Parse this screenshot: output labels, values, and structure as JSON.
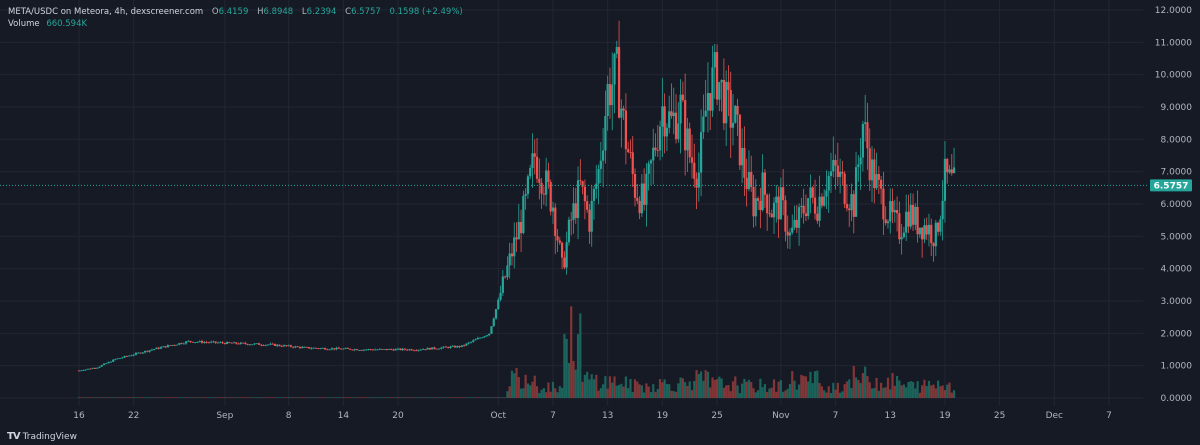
{
  "legend": {
    "symbol": "META/USDC on Meteora, 4h, dexscreener.com",
    "open_label": "O",
    "open": "6.4159",
    "high_label": "H",
    "high": "6.8948",
    "low_label": "L",
    "low": "6.2394",
    "close_label": "C",
    "close": "6.5757",
    "change": "0.1598 (+2.49%)",
    "volume_label": "Volume",
    "volume": "660.594K"
  },
  "branding": {
    "logo": "TV",
    "name": "TradingView"
  },
  "colors": {
    "up": "#26a69a",
    "down": "#ef5350",
    "background": "#161a25",
    "grid": "#232632",
    "text": "#b2b5be"
  },
  "chart_data": {
    "type": "candlestick",
    "symbol": "META/USDC",
    "interval": "4h",
    "y_ticks": [
      "0.0000",
      "1.0000",
      "2.0000",
      "3.0000",
      "4.0000",
      "5.0000",
      "6.0000",
      "7.0000",
      "8.0000",
      "9.0000",
      "10.0000",
      "11.0000",
      "12.0000"
    ],
    "ylim": [
      0,
      12
    ],
    "x_ticks": [
      "16",
      "22",
      "Sep",
      "8",
      "14",
      "20",
      "Oct",
      "7",
      "13",
      "19",
      "25",
      "Nov",
      "7",
      "13",
      "19",
      "25",
      "Dec",
      "7"
    ],
    "last_price": "6.5757",
    "price_series": {
      "dates": [
        "Aug 16",
        "Aug 18",
        "Aug 20",
        "Aug 24",
        "Aug 28",
        "Sep 1",
        "Sep 6",
        "Sep 10",
        "Sep 16",
        "Sep 22",
        "Sep 27",
        "Sep 30",
        "Oct 2",
        "Oct 4",
        "Oct 5",
        "Oct 7",
        "Oct 8",
        "Oct 9",
        "Oct 10",
        "Oct 11",
        "Oct 12",
        "Oct 13",
        "Oct 14",
        "Oct 15",
        "Oct 16",
        "Oct 17",
        "Oct 18",
        "Oct 19",
        "Oct 20",
        "Oct 21",
        "Oct 22",
        "Oct 23",
        "Oct 24",
        "Oct 25",
        "Oct 26",
        "Oct 27",
        "Oct 28",
        "Oct 29",
        "Oct 30",
        "Oct 31",
        "Nov 1",
        "Nov 2",
        "Nov 3",
        "Nov 4",
        "Nov 5",
        "Nov 6",
        "Nov 7",
        "Nov 8",
        "Nov 9",
        "Nov 10",
        "Nov 11",
        "Nov 12",
        "Nov 13",
        "Nov 14",
        "Nov 15",
        "Nov 16",
        "Nov 17",
        "Nov 18",
        "Nov 19",
        "Nov 20"
      ],
      "close": [
        0.85,
        0.95,
        1.2,
        1.5,
        1.75,
        1.7,
        1.65,
        1.55,
        1.5,
        1.5,
        1.6,
        2.0,
        4.0,
        6.0,
        7.5,
        6.0,
        4.0,
        5.5,
        6.5,
        5.5,
        7.0,
        9.5,
        10.0,
        8.0,
        6.5,
        6.0,
        7.5,
        9.0,
        8.5,
        9.0,
        7.5,
        7.0,
        9.5,
        10.0,
        9.0,
        8.5,
        7.0,
        6.0,
        6.5,
        5.8,
        6.0,
        5.0,
        5.5,
        6.2,
        6.0,
        6.8,
        7.0,
        6.5,
        6.0,
        8.5,
        7.0,
        6.2,
        5.6,
        5.2,
        5.8,
        5.4,
        5.3,
        5.0,
        6.8,
        6.5757
      ]
    },
    "volume_series": {
      "dates": [
        "Oct 2",
        "Oct 5",
        "Oct 8",
        "Oct 10",
        "Oct 12",
        "Oct 15",
        "Oct 18",
        "Oct 21",
        "Oct 24",
        "Oct 27",
        "Oct 30",
        "Nov 2",
        "Nov 5",
        "Nov 8",
        "Nov 11",
        "Nov 14",
        "Nov 17",
        "Nov 20"
      ],
      "values": [
        0.3,
        1.1,
        0.6,
        2.9,
        0.9,
        0.8,
        0.6,
        0.7,
        0.9,
        0.7,
        0.6,
        0.6,
        0.9,
        0.6,
        1.0,
        0.8,
        0.6,
        0.66
      ]
    }
  }
}
